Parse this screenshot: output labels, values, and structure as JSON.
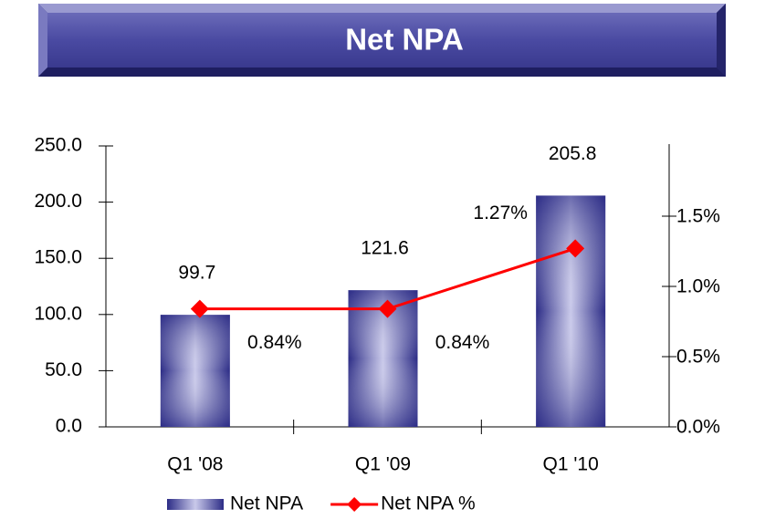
{
  "chart_data": {
    "type": "bar-line",
    "title": "Net NPA",
    "categories": [
      "Q1 '08",
      "Q1 '09",
      "Q1 '10"
    ],
    "series": [
      {
        "name": "Net NPA",
        "type": "bar",
        "color": "#3a3a96",
        "values": [
          99.7,
          121.6,
          205.8
        ]
      },
      {
        "name": "Net NPA %",
        "type": "line",
        "axis": "y2",
        "color": "#ff0000",
        "values": [
          0.84,
          0.84,
          1.27
        ],
        "value_labels": [
          "0.84%",
          "0.84%",
          "1.27%"
        ]
      }
    ],
    "ylim": [
      0,
      250
    ],
    "yticks": [
      {
        "value": 0,
        "label": "0.0"
      },
      {
        "value": 50,
        "label": "50.0"
      },
      {
        "value": 100,
        "label": "100.0"
      },
      {
        "value": 150,
        "label": "150.0"
      },
      {
        "value": 200,
        "label": "200.0"
      },
      {
        "value": 250,
        "label": "250.0"
      }
    ],
    "y2lim": [
      0,
      2
    ],
    "y2ticks": [
      {
        "value": 0,
        "label": "0.0%"
      },
      {
        "value": 0.5,
        "label": "0.5%"
      },
      {
        "value": 1,
        "label": "1.0%"
      },
      {
        "value": 1.5,
        "label": "1.5%"
      }
    ],
    "legend": "bottom"
  }
}
